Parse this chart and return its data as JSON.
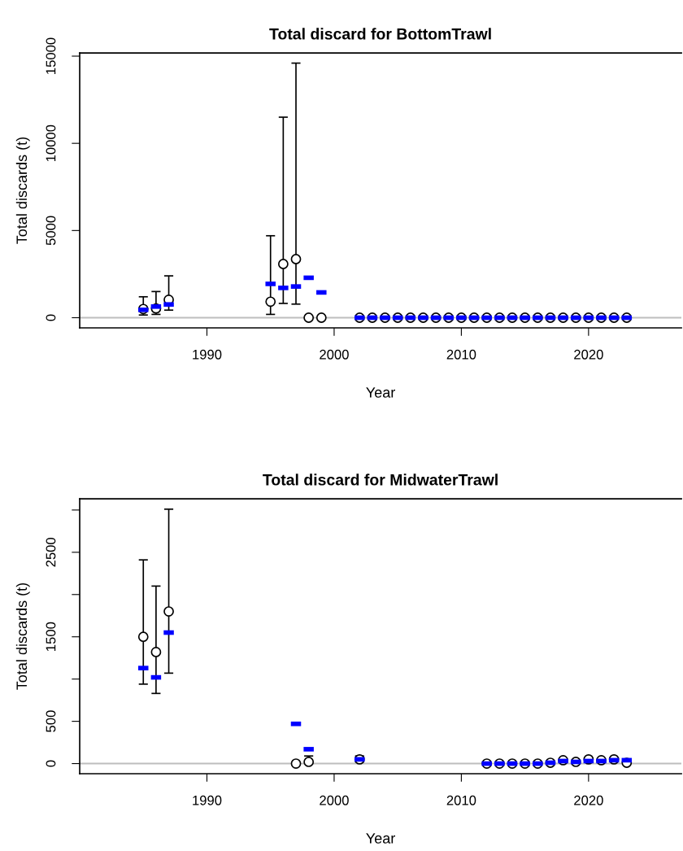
{
  "chart_data": [
    {
      "type": "scatter",
      "title": "Total discard for BottomTrawl",
      "xlabel": "Year",
      "ylabel": "Total discards (t)",
      "xlim": [
        1980,
        2027.3
      ],
      "xticks": [
        1990,
        2000,
        2010,
        2020
      ],
      "ylim": [
        -584,
        15184
      ],
      "yticks": [
        0,
        5000,
        10000,
        15000
      ],
      "grid": false,
      "legend": false,
      "ref_lines": [
        {
          "axis": "y",
          "value": 0,
          "color": "#bebebe"
        }
      ],
      "series": [
        {
          "marker": "circle",
          "color": "#000000",
          "x": [
            1985,
            1986,
            1987,
            1995,
            1996,
            1997,
            1998,
            1999,
            2002,
            2003,
            2004,
            2005,
            2006,
            2007,
            2008,
            2009,
            2010,
            2011,
            2012,
            2013,
            2014,
            2015,
            2016,
            2017,
            2018,
            2019,
            2020,
            2021,
            2022,
            2023
          ],
          "values": [
            500,
            530,
            1030,
            920,
            3080,
            3360,
            0,
            0,
            0,
            0,
            0,
            0,
            0,
            0,
            0,
            0,
            0,
            0,
            0,
            0,
            0,
            0,
            0,
            0,
            0,
            0,
            0,
            0,
            0,
            0
          ],
          "errors": [
            [
              155,
              1200
            ],
            [
              190,
              1500
            ],
            [
              435,
              2400
            ],
            [
              190,
              4700
            ],
            [
              820,
              11500
            ],
            [
              780,
              14600
            ],
            null,
            null,
            null,
            null,
            null,
            null,
            null,
            null,
            null,
            null,
            null,
            null,
            null,
            null,
            null,
            null,
            null,
            null,
            null,
            null,
            null,
            null,
            null,
            null
          ]
        },
        {
          "marker": "square",
          "color": "#0000ff",
          "x": [
            1985,
            1986,
            1987,
            1995,
            1996,
            1997,
            1998,
            1999,
            2002,
            2003,
            2004,
            2005,
            2006,
            2007,
            2008,
            2009,
            2010,
            2011,
            2012,
            2013,
            2014,
            2015,
            2016,
            2017,
            2018,
            2019,
            2020,
            2021,
            2022,
            2023
          ],
          "values": [
            450,
            640,
            760,
            1940,
            1710,
            1790,
            2290,
            1450,
            0,
            0,
            0,
            0,
            0,
            0,
            0,
            0,
            0,
            0,
            0,
            0,
            0,
            0,
            0,
            0,
            0,
            0,
            0,
            0,
            0,
            0
          ]
        }
      ]
    },
    {
      "type": "scatter",
      "title": "Total discard for MidwaterTrawl",
      "xlabel": "Year",
      "ylabel": "Total discards (t)",
      "xlim": [
        1980,
        2027.3
      ],
      "xticks": [
        1990,
        2000,
        2010,
        2020
      ],
      "ylim": [
        -120,
        3133
      ],
      "yticks": [
        0,
        500,
        {
          "value": 1000,
          "label": null
        },
        1500,
        {
          "value": 2000,
          "label": null
        },
        2500,
        {
          "value": 3000,
          "label": null
        }
      ],
      "grid": false,
      "legend": false,
      "ref_lines": [
        {
          "axis": "y",
          "value": 0,
          "color": "#bebebe"
        }
      ],
      "series": [
        {
          "marker": "circle",
          "color": "#000000",
          "x": [
            1985,
            1986,
            1987,
            1997,
            1998,
            2002,
            2012,
            2013,
            2014,
            2015,
            2016,
            2017,
            2018,
            2019,
            2020,
            2021,
            2022,
            2023
          ],
          "values": [
            1500,
            1320,
            1800,
            0,
            20,
            50,
            0,
            0,
            0,
            0,
            0,
            10,
            40,
            20,
            50,
            40,
            50,
            10
          ],
          "errors": [
            [
              940,
              2410
            ],
            [
              830,
              2100
            ],
            [
              1070,
              3010
            ],
            null,
            [
              0,
              90
            ],
            [
              20,
              90
            ],
            null,
            null,
            null,
            null,
            null,
            null,
            null,
            null,
            null,
            null,
            null,
            null
          ]
        },
        {
          "marker": "square",
          "color": "#0000ff",
          "x": [
            1985,
            1986,
            1987,
            1997,
            1998,
            2002,
            2012,
            2013,
            2014,
            2015,
            2016,
            2017,
            2018,
            2019,
            2020,
            2021,
            2022,
            2023
          ],
          "values": [
            1130,
            1020,
            1550,
            470,
            170,
            50,
            0,
            0,
            0,
            0,
            0,
            10,
            30,
            20,
            30,
            30,
            40,
            40
          ]
        }
      ]
    }
  ]
}
